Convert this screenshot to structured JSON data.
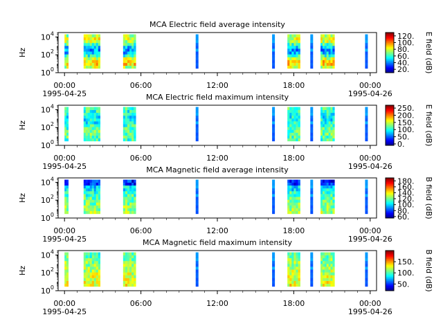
{
  "chart_data": [
    {
      "type": "heatmap",
      "title": "MCA  Electric field average intensity",
      "ylabel": "Hz",
      "y_scale": "log",
      "y_ticks": [
        {
          "base": "10",
          "exp": "0"
        },
        {
          "base": "10",
          "exp": "2"
        },
        {
          "base": "10",
          "exp": "4"
        }
      ],
      "ylim": [
        1,
        31623
      ],
      "x_ticks": [
        "00:00",
        "06:00",
        "12:00",
        "18:00",
        "00:00"
      ],
      "x_dates": {
        "start": "1995-04-25",
        "end": "1995-04-26"
      },
      "xlim_hours": [
        -0.5,
        24.5
      ],
      "colorbar": {
        "label": "E field (dB)",
        "ticks": [
          "120",
          "100",
          "80",
          "60",
          "40",
          "20"
        ],
        "range": [
          10,
          130
        ]
      },
      "segments_hours": [
        [
          0.0,
          0.3
        ],
        [
          1.5,
          2.8
        ],
        [
          4.6,
          5.6
        ],
        [
          10.3,
          10.5
        ],
        [
          16.3,
          16.5
        ],
        [
          17.5,
          18.5
        ],
        [
          19.3,
          19.5
        ],
        [
          20.1,
          21.2
        ],
        [
          23.6,
          23.8
        ]
      ],
      "freq_range_hz": [
        3,
        20000
      ]
    },
    {
      "type": "heatmap",
      "title": "MCA  Electric field maximum intensity",
      "ylabel": "Hz",
      "y_scale": "log",
      "y_ticks": [
        {
          "base": "10",
          "exp": "0"
        },
        {
          "base": "10",
          "exp": "2"
        },
        {
          "base": "10",
          "exp": "4"
        }
      ],
      "ylim": [
        1,
        31623
      ],
      "x_ticks": [
        "00:00",
        "06:00",
        "12:00",
        "18:00",
        "00:00"
      ],
      "x_dates": {
        "start": "1995-04-25",
        "end": "1995-04-26"
      },
      "xlim_hours": [
        -0.5,
        24.5
      ],
      "colorbar": {
        "label": "E field (dB)",
        "ticks": [
          "250",
          "200",
          "150",
          "100",
          "50",
          "0"
        ],
        "range": [
          -10,
          270
        ]
      },
      "segments_hours": [
        [
          0.0,
          0.3
        ],
        [
          1.5,
          2.8
        ],
        [
          4.6,
          5.6
        ],
        [
          10.3,
          10.5
        ],
        [
          16.3,
          16.5
        ],
        [
          17.5,
          18.5
        ],
        [
          19.3,
          19.5
        ],
        [
          20.1,
          21.2
        ],
        [
          23.6,
          23.8
        ]
      ],
      "freq_range_hz": [
        3,
        20000
      ]
    },
    {
      "type": "heatmap",
      "title": "MCA  Magnetic field average intensity",
      "ylabel": "Hz",
      "y_scale": "log",
      "y_ticks": [
        {
          "base": "10",
          "exp": "0"
        },
        {
          "base": "10",
          "exp": "2"
        },
        {
          "base": "10",
          "exp": "4"
        }
      ],
      "ylim": [
        1,
        31623
      ],
      "x_ticks": [
        "00:00",
        "06:00",
        "12:00",
        "18:00",
        "00:00"
      ],
      "x_dates": {
        "start": "1995-04-25",
        "end": "1995-04-26"
      },
      "xlim_hours": [
        -0.5,
        24.5
      ],
      "colorbar": {
        "label": "B field (dB)",
        "ticks": [
          "180",
          "160",
          "140",
          "120",
          "100",
          "80",
          "60"
        ],
        "range": [
          55,
          190
        ]
      },
      "segments_hours": [
        [
          0.0,
          0.3
        ],
        [
          1.5,
          2.8
        ],
        [
          4.6,
          5.6
        ],
        [
          10.3,
          10.5
        ],
        [
          16.3,
          16.5
        ],
        [
          17.5,
          18.5
        ],
        [
          19.3,
          19.5
        ],
        [
          20.1,
          21.2
        ],
        [
          23.6,
          23.8
        ]
      ],
      "freq_range_hz": [
        3,
        20000
      ]
    },
    {
      "type": "heatmap",
      "title": "MCA  Magnetic field maximum intensity",
      "ylabel": "Hz",
      "y_scale": "log",
      "y_ticks": [
        {
          "base": "10",
          "exp": "0"
        },
        {
          "base": "10",
          "exp": "2"
        },
        {
          "base": "10",
          "exp": "4"
        }
      ],
      "ylim": [
        1,
        31623
      ],
      "x_ticks": [
        "00:00",
        "06:00",
        "12:00",
        "18:00",
        "00:00"
      ],
      "x_dates": {
        "start": "1995-04-25",
        "end": "1995-04-26"
      },
      "xlim_hours": [
        -0.5,
        24.5
      ],
      "colorbar": {
        "label": "B field (dB)",
        "ticks": [
          "150",
          "100",
          "50"
        ],
        "range": [
          20,
          200
        ]
      },
      "segments_hours": [
        [
          0.0,
          0.3
        ],
        [
          1.5,
          2.8
        ],
        [
          4.6,
          5.6
        ],
        [
          10.3,
          10.5
        ],
        [
          16.3,
          16.5
        ],
        [
          17.5,
          18.5
        ],
        [
          19.3,
          19.5
        ],
        [
          20.1,
          21.2
        ],
        [
          23.6,
          23.8
        ]
      ],
      "freq_range_hz": [
        3,
        20000
      ]
    }
  ]
}
